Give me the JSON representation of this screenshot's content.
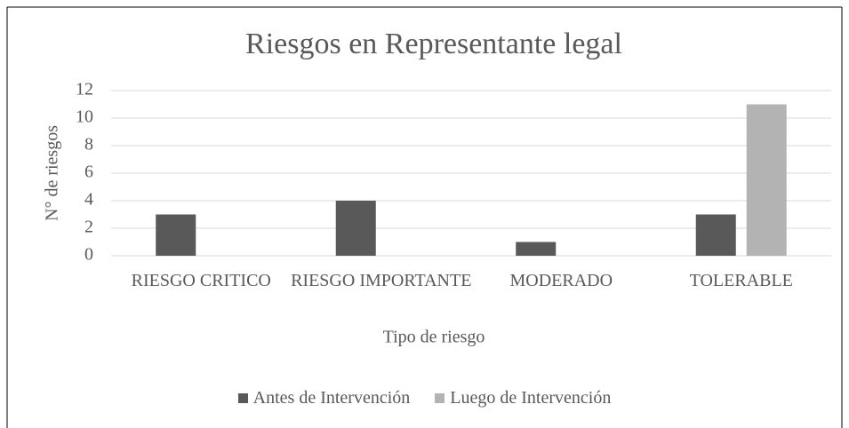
{
  "chart_data": {
    "type": "bar",
    "title": "Riesgos en Representante legal",
    "categories": [
      "RIESGO CRITICO",
      "RIESGO IMPORTANTE",
      "MODERADO",
      "TOLERABLE"
    ],
    "series": [
      {
        "name": "Antes de Intervención",
        "color": "#595959",
        "values": [
          3,
          4,
          1,
          3
        ]
      },
      {
        "name": "Luego de Intervención",
        "color": "#b3b3b3",
        "values": [
          0,
          0,
          0,
          11
        ]
      }
    ],
    "x_label": "Tipo de riesgo",
    "y_label": "N° de riesgos",
    "ylim": [
      0,
      12
    ],
    "yticks": [
      0,
      2,
      4,
      6,
      8,
      10,
      12
    ],
    "grid": true,
    "legend": "bottom"
  }
}
